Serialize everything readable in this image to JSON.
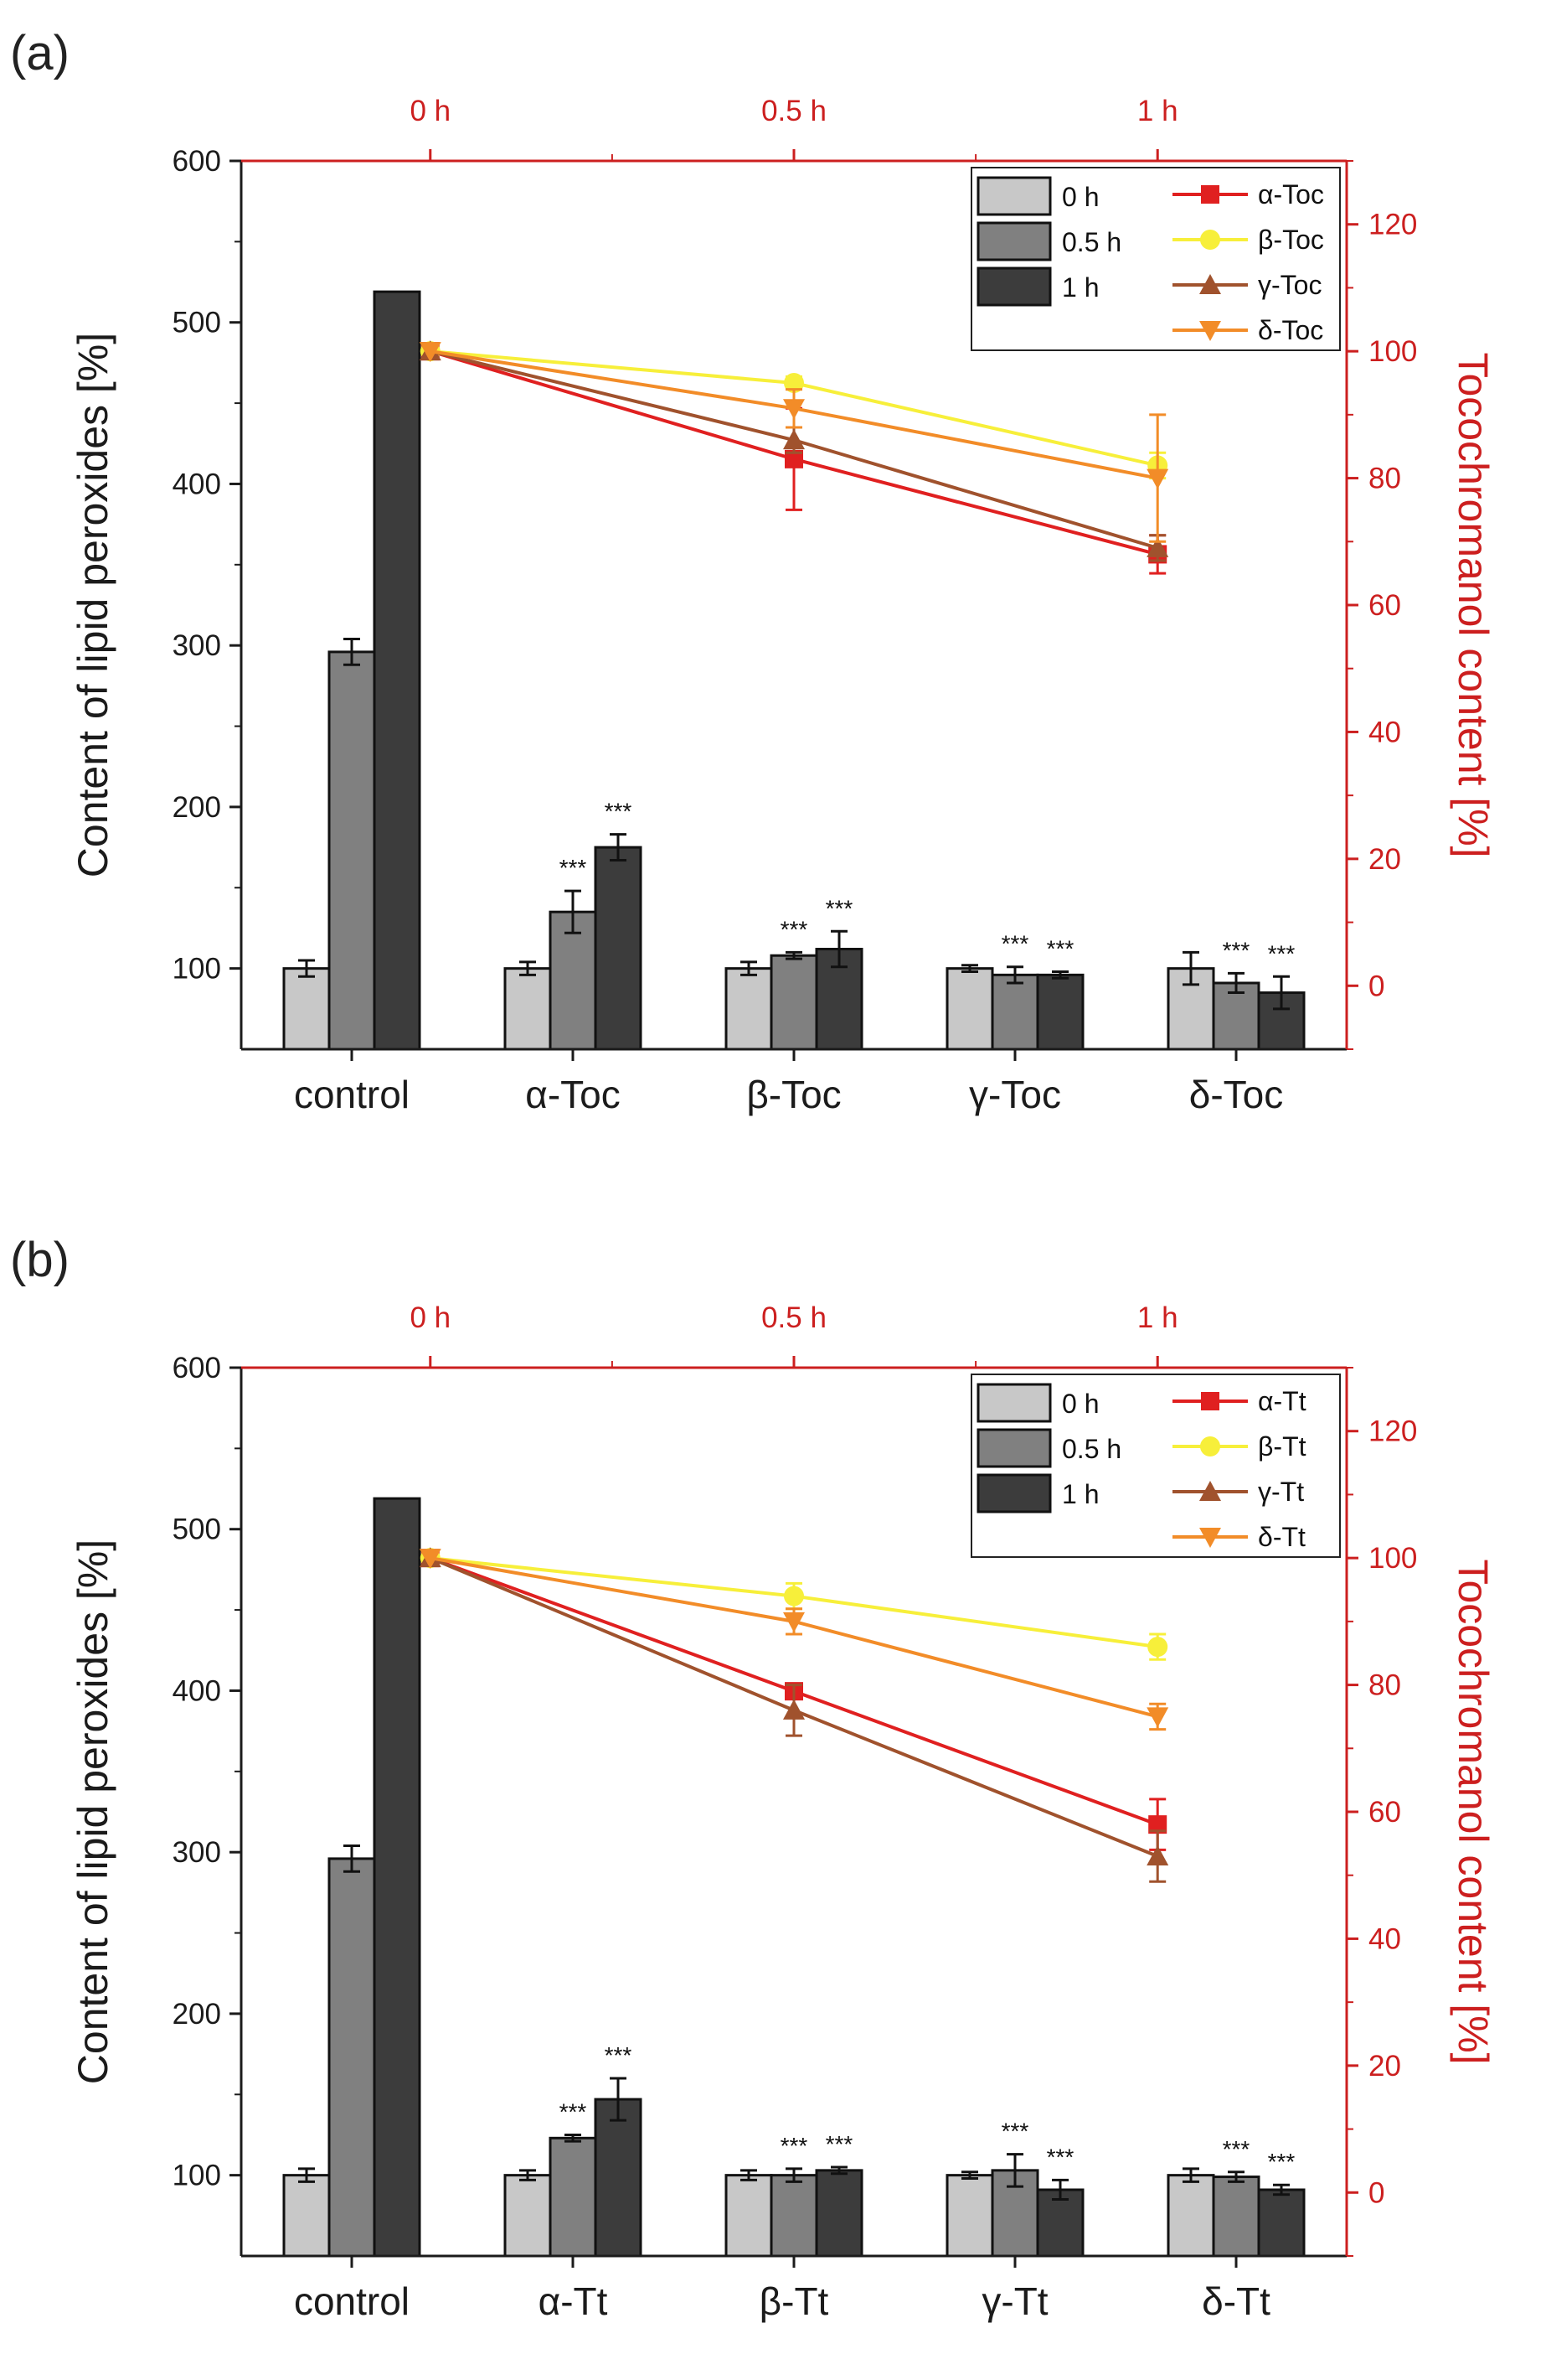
{
  "chart_data": [
    {
      "panel_label": "(a)",
      "type": "bar",
      "categories": [
        "control",
        "α-Toc",
        "β-Toc",
        "γ-Toc",
        "δ-Toc"
      ],
      "ylabel": "Content of lipid peroxides [%]",
      "ylim": [
        50,
        600
      ],
      "yticks": [
        100,
        200,
        300,
        400,
        500,
        600
      ],
      "series": [
        {
          "name": "0 h",
          "color": "#c8c8c8",
          "values": [
            100,
            100,
            100,
            100,
            100
          ],
          "errors": [
            5,
            4,
            4,
            2,
            10
          ]
        },
        {
          "name": "0.5 h",
          "color": "#808080",
          "values": [
            296,
            135,
            108,
            96,
            91
          ],
          "errors": [
            8,
            13,
            2,
            5,
            6
          ]
        },
        {
          "name": "1 h",
          "color": "#3c3c3c",
          "values": [
            519,
            175,
            112,
            96,
            85
          ],
          "errors": [
            0,
            8,
            11,
            2,
            10
          ]
        }
      ],
      "significance": [
        {
          "category": 1,
          "series": 1,
          "text": "***"
        },
        {
          "category": 1,
          "series": 2,
          "text": "***"
        },
        {
          "category": 2,
          "series": 1,
          "text": "***"
        },
        {
          "category": 2,
          "series": 2,
          "text": "***"
        },
        {
          "category": 3,
          "series": 1,
          "text": "***"
        },
        {
          "category": 3,
          "series": 2,
          "text": "***"
        },
        {
          "category": 4,
          "series": 1,
          "text": "***"
        },
        {
          "category": 4,
          "series": 2,
          "text": "***"
        }
      ],
      "secondary": {
        "type": "line",
        "x_tick_labels": [
          "0 h",
          "0.5 h",
          "1 h"
        ],
        "x": [
          0,
          0.5,
          1
        ],
        "xlim": [
          -0.26,
          1.26
        ],
        "ylabel": "Tocochromanol content [%]",
        "ylim": [
          -10,
          130
        ],
        "yticks": [
          0,
          20,
          40,
          60,
          80,
          100,
          120
        ],
        "color": "#cc1f1f",
        "series": [
          {
            "name": "α-Toc",
            "color": "#e02020",
            "marker": "square",
            "values": [
              100,
              83,
              68
            ],
            "errors": [
              0,
              8,
              3
            ]
          },
          {
            "name": "β-Toc",
            "color": "#f7ef3a",
            "marker": "circle",
            "values": [
              100,
              95,
              82
            ],
            "errors": [
              0,
              1,
              2
            ]
          },
          {
            "name": "γ-Toc",
            "color": "#a0522d",
            "marker": "triangle-up",
            "values": [
              100,
              86,
              69
            ],
            "errors": [
              0,
              2,
              2
            ]
          },
          {
            "name": "δ-Toc",
            "color": "#f28c28",
            "marker": "triangle-down",
            "values": [
              100,
              91,
              80
            ],
            "errors": [
              0,
              3,
              10
            ]
          }
        ]
      }
    },
    {
      "panel_label": "(b)",
      "type": "bar",
      "categories": [
        "control",
        "α-Tt",
        "β-Tt",
        "γ-Tt",
        "δ-Tt"
      ],
      "ylabel": "Content of lipid peroxides [%]",
      "ylim": [
        50,
        600
      ],
      "yticks": [
        100,
        200,
        300,
        400,
        500,
        600
      ],
      "series": [
        {
          "name": "0 h",
          "color": "#c8c8c8",
          "values": [
            100,
            100,
            100,
            100,
            100
          ],
          "errors": [
            4,
            3,
            3,
            2,
            4
          ]
        },
        {
          "name": "0.5 h",
          "color": "#808080",
          "values": [
            296,
            123,
            100,
            103,
            99
          ],
          "errors": [
            8,
            2,
            4,
            10,
            3
          ]
        },
        {
          "name": "1 h",
          "color": "#3c3c3c",
          "values": [
            519,
            147,
            103,
            91,
            91
          ],
          "errors": [
            0,
            13,
            2,
            6,
            3
          ]
        }
      ],
      "significance": [
        {
          "category": 1,
          "series": 1,
          "text": "***"
        },
        {
          "category": 1,
          "series": 2,
          "text": "***"
        },
        {
          "category": 2,
          "series": 1,
          "text": "***"
        },
        {
          "category": 2,
          "series": 2,
          "text": "***"
        },
        {
          "category": 3,
          "series": 1,
          "text": "***"
        },
        {
          "category": 3,
          "series": 2,
          "text": "***"
        },
        {
          "category": 4,
          "series": 1,
          "text": "***"
        },
        {
          "category": 4,
          "series": 2,
          "text": "***"
        }
      ],
      "secondary": {
        "type": "line",
        "x_tick_labels": [
          "0 h",
          "0.5 h",
          "1 h"
        ],
        "x": [
          0,
          0.5,
          1
        ],
        "xlim": [
          -0.26,
          1.26
        ],
        "ylabel": "Tocochromanol content [%]",
        "ylim": [
          -10,
          130
        ],
        "yticks": [
          0,
          20,
          40,
          60,
          80,
          100,
          120
        ],
        "color": "#cc1f1f",
        "series": [
          {
            "name": "α-Tt",
            "color": "#e02020",
            "marker": "square",
            "values": [
              100,
              79,
              58
            ],
            "errors": [
              0,
              1,
              4
            ]
          },
          {
            "name": "β-Tt",
            "color": "#f7ef3a",
            "marker": "circle",
            "values": [
              100,
              94,
              86
            ],
            "errors": [
              0,
              2,
              2
            ]
          },
          {
            "name": "γ-Tt",
            "color": "#a0522d",
            "marker": "triangle-up",
            "values": [
              100,
              76,
              53
            ],
            "errors": [
              0,
              4,
              4
            ]
          },
          {
            "name": "δ-Tt",
            "color": "#f28c28",
            "marker": "triangle-down",
            "values": [
              100,
              90,
              75
            ],
            "errors": [
              0,
              2,
              2
            ]
          }
        ]
      }
    }
  ]
}
